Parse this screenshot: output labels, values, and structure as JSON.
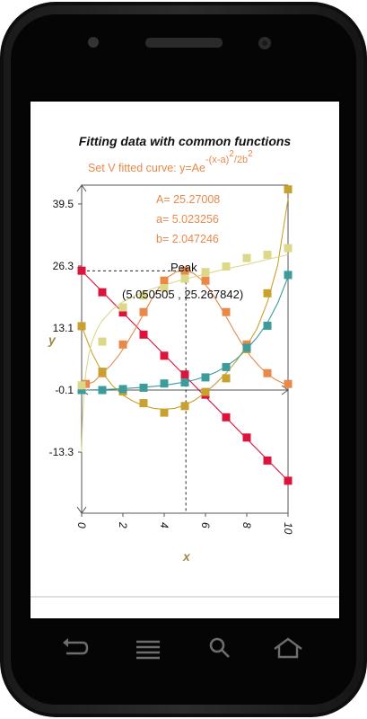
{
  "nav": {
    "buttons": [
      {
        "name": "back-button",
        "icon": "back-arrow-icon"
      },
      {
        "name": "menu-button",
        "icon": "menu-lines-icon"
      },
      {
        "name": "search-button",
        "icon": "search-icon"
      },
      {
        "name": "home-button",
        "icon": "home-icon"
      }
    ]
  },
  "chart_data": {
    "type": "scatter",
    "title": "Fitting data with common functions",
    "subtitle": "Set V fitted curve: y=Ae",
    "subtitle_exponent": "-(x-a)",
    "subtitle_exponent_power": "2",
    "subtitle_exponent_tail": "/2b",
    "subtitle_exponent_tail_power": "2",
    "xlabel": "x",
    "ylabel": "y",
    "xlim": [
      0,
      10
    ],
    "ylim": [
      -26.3,
      43.5
    ],
    "x_ticks": [
      0,
      2,
      4,
      6,
      8,
      10
    ],
    "x_tick_labels": [
      "0",
      "2",
      "4",
      "6",
      "8",
      "10"
    ],
    "y_ticks": [
      39.5,
      26.3,
      13.1,
      -0.1,
      -13.3
    ],
    "y_tick_labels": [
      "39.5",
      "26.3",
      "13.1",
      "-0.1",
      "-13.3"
    ],
    "fit_params": {
      "A_label": "A= 25.27008",
      "a_label": "a= 5.023256",
      "b_label": "b= 2.047246"
    },
    "peak": {
      "label": "Peak",
      "coords_label": "(5.050505 , 25.267842)",
      "x": 5.050505,
      "y": 25.267842
    },
    "series": [
      {
        "color": "#dc143c",
        "x": [
          0,
          1,
          2,
          3,
          4,
          5,
          6,
          7,
          8,
          9,
          10
        ],
        "y": [
          25.3,
          20.7,
          16.4,
          11.7,
          7.2,
          3.2,
          -1.1,
          -5.9,
          -10.2,
          -15.1,
          -19.4
        ],
        "fit_x": [
          0,
          10
        ],
        "fit_y": [
          25.3,
          -19.4
        ]
      },
      {
        "color": "#e8894a",
        "x": [
          0.2,
          1,
          2,
          3,
          4,
          5,
          6,
          7,
          8,
          9,
          10
        ],
        "y": [
          1.2,
          3.5,
          9.6,
          16.5,
          23.2,
          25.3,
          23.2,
          16.5,
          9.6,
          3.5,
          1.2
        ],
        "fit_x": [
          0.2,
          0.6,
          1,
          1.4,
          1.8,
          2.2,
          2.6,
          3,
          3.4,
          3.8,
          4.2,
          4.6,
          5,
          5.4,
          5.8,
          6.2,
          6.6,
          7,
          7.4,
          7.8,
          8.2,
          8.6,
          9,
          9.4,
          9.8,
          10
        ],
        "fit_y": [
          1.0,
          1.7,
          3.5,
          5.1,
          7.3,
          9.9,
          12.9,
          16.1,
          19.3,
          22.0,
          24.0,
          25.1,
          25.3,
          24.8,
          23.4,
          21.2,
          18.5,
          15.5,
          12.4,
          9.5,
          7.0,
          5.0,
          3.3,
          2.1,
          1.3,
          0.8
        ]
      },
      {
        "color": "#c9a12e",
        "x": [
          0,
          1,
          2,
          3,
          4,
          5,
          6,
          7,
          8,
          9,
          10
        ],
        "y": [
          13.5,
          3.8,
          -0.4,
          -2.9,
          -4.9,
          -3.5,
          -0.5,
          2.4,
          8.6,
          20.5,
          42.6
        ],
        "fit_x": [
          0,
          0.5,
          1,
          1.5,
          2,
          2.5,
          3,
          3.5,
          4,
          4.5,
          5,
          5.5,
          6,
          6.5,
          7,
          7.5,
          8,
          8.5,
          9,
          9.5,
          10
        ],
        "fit_y": [
          13.5,
          7.8,
          3.6,
          0.8,
          -1.2,
          -2.5,
          -3.4,
          -4.0,
          -4.2,
          -4.0,
          -3.3,
          -2.2,
          -0.6,
          1.3,
          3.5,
          6.1,
          9.3,
          13.0,
          18.6,
          26.5,
          40.6
        ]
      },
      {
        "color": "#3d9b9b",
        "x": [
          0,
          1,
          2,
          3,
          4,
          5,
          6,
          7,
          8,
          9,
          10
        ],
        "y": [
          -0.1,
          -0.1,
          0.1,
          0.4,
          1.3,
          1.5,
          2.6,
          4.8,
          8.9,
          13.6,
          24.4
        ],
        "fit_x": [
          0,
          1,
          2,
          3,
          4,
          5,
          5.5,
          6,
          6.5,
          7,
          7.5,
          8,
          8.5,
          9,
          9.5,
          10
        ],
        "fit_y": [
          -0.1,
          0.0,
          0.2,
          0.5,
          0.9,
          1.6,
          2.1,
          2.8,
          3.7,
          4.9,
          6.5,
          8.6,
          11.1,
          14.2,
          18.4,
          24.0
        ]
      },
      {
        "color": "#dcd88a",
        "x": [
          0,
          1,
          2,
          3,
          4,
          5,
          6,
          7,
          8,
          9,
          10
        ],
        "y": [
          0.9,
          10.2,
          17.5,
          20.0,
          21.6,
          23.6,
          25.0,
          26.2,
          28.0,
          28.7,
          30.1
        ],
        "fit_x": [
          0,
          0.05,
          0.1,
          0.2,
          0.35,
          0.5,
          0.75,
          1,
          1.5,
          2,
          2.5,
          3,
          4,
          5,
          6,
          7,
          8,
          9,
          10
        ],
        "fit_y": [
          -13.3,
          -6.0,
          -1.5,
          3.5,
          7.5,
          10.2,
          12.9,
          14.7,
          17.1,
          18.7,
          19.8,
          20.8,
          22.3,
          23.5,
          24.6,
          25.7,
          26.6,
          27.7,
          28.7
        ]
      }
    ]
  }
}
